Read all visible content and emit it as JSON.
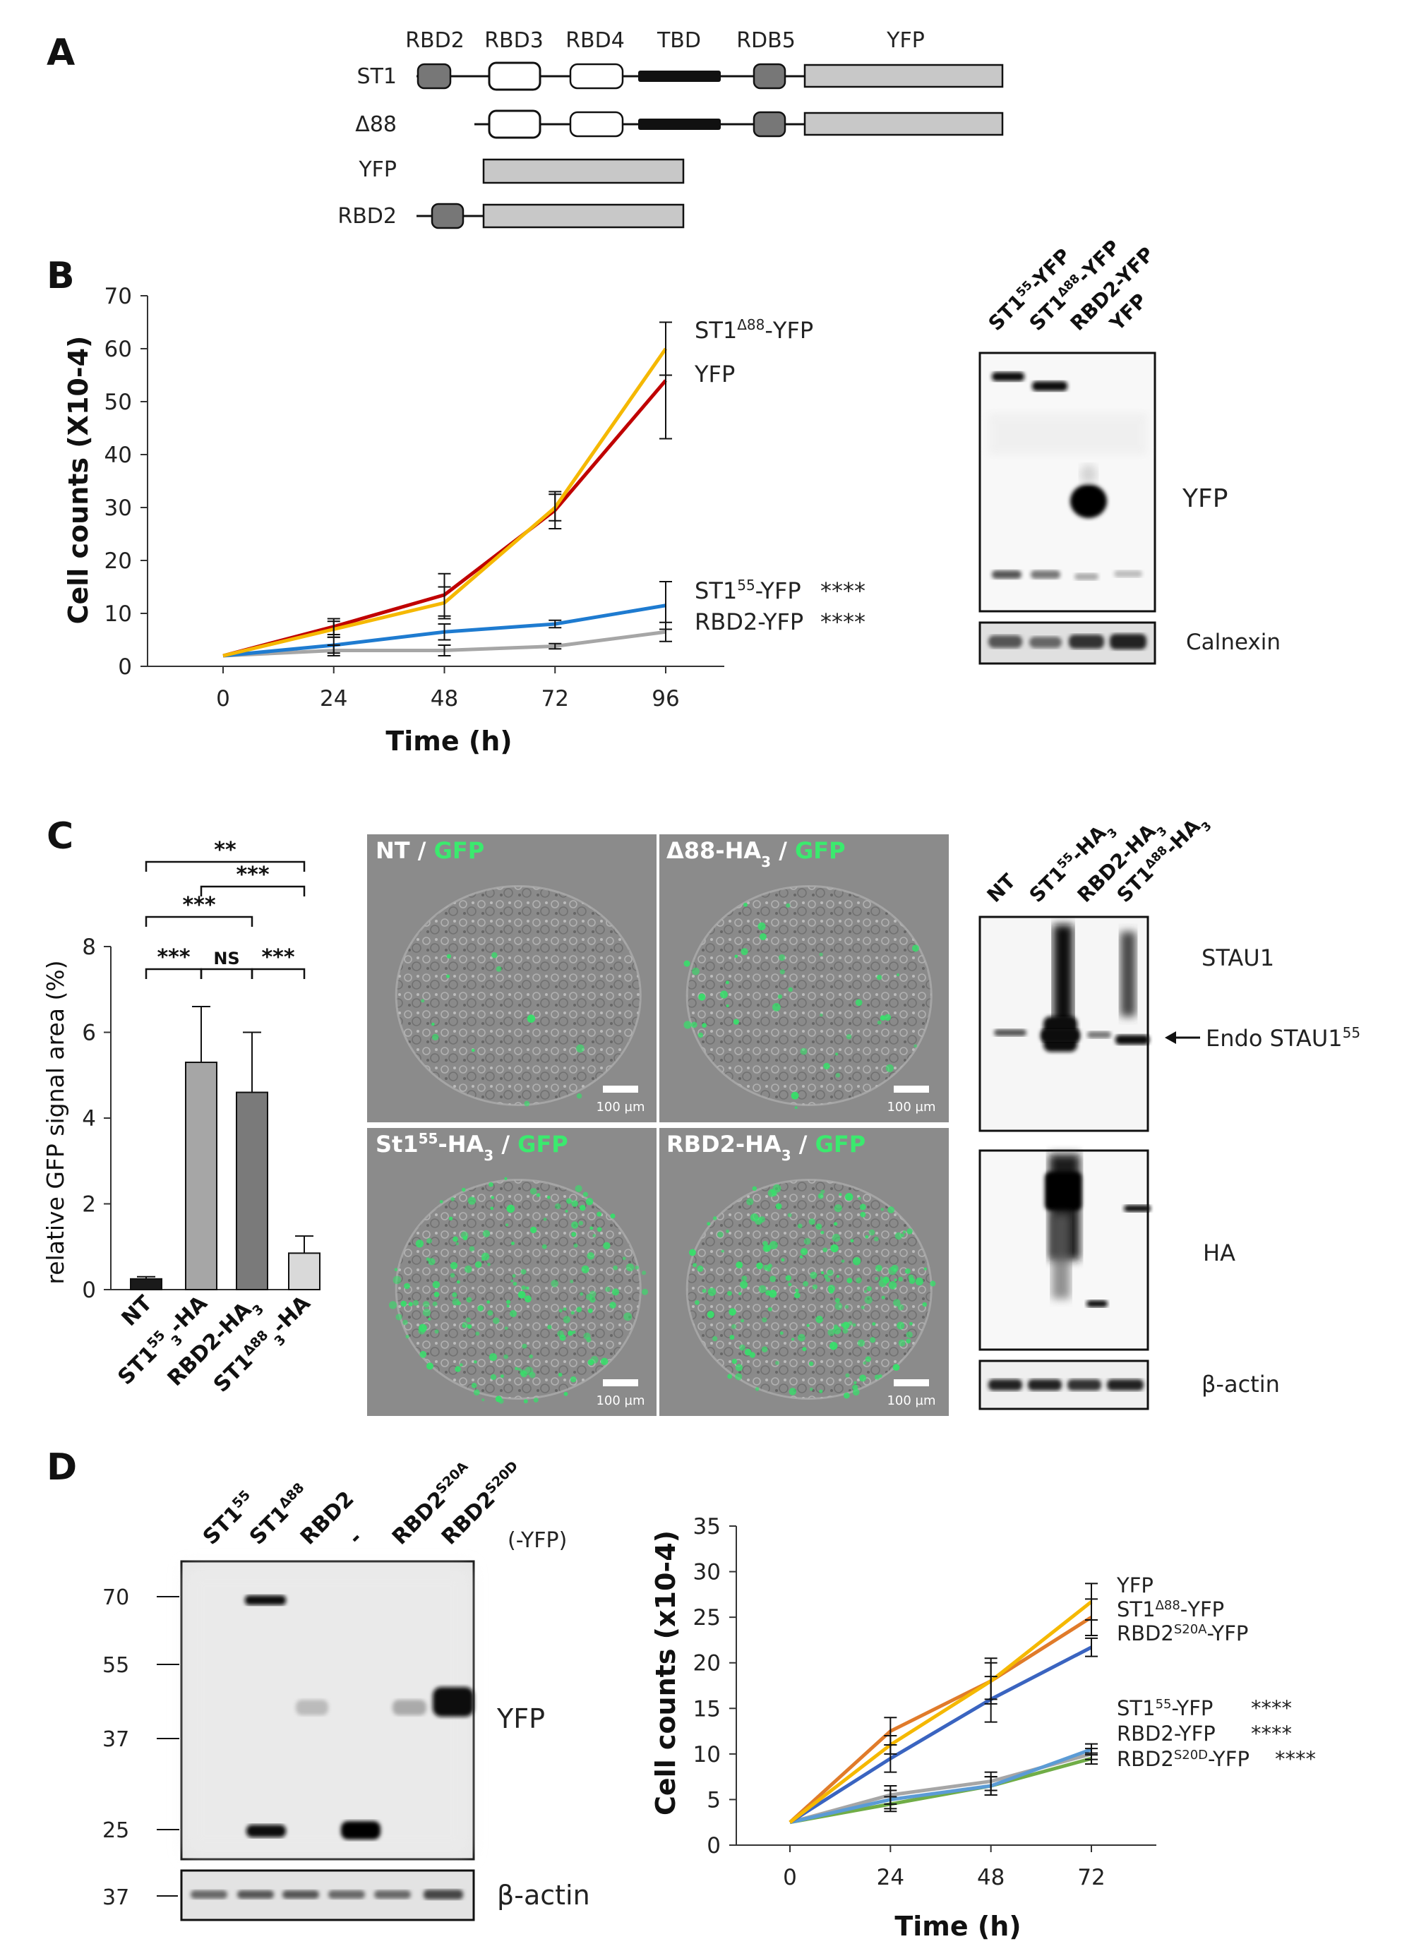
{
  "panels": {
    "a": "A",
    "b": "B",
    "c": "C",
    "d": "D"
  },
  "panel_a": {
    "domain_labels": [
      "RBD2",
      "RBD3",
      "RBD4",
      "TBD",
      "RDB5",
      "YFP"
    ],
    "constructs": [
      "ST1",
      "Δ88",
      "YFP",
      "RBD2"
    ]
  },
  "panel_b_blot": {
    "lanes": [
      {
        "main": "ST1",
        "sup": "55",
        "tail": "-YFP"
      },
      {
        "main": "ST1",
        "sup": "Δ88",
        "tail": "-YFP"
      },
      {
        "main": "RBD2-YFP",
        "sup": "",
        "tail": ""
      },
      {
        "main": "YFP",
        "sup": "",
        "tail": ""
      }
    ],
    "labels": {
      "yfp": "YFP",
      "calnexin": "Calnexin"
    }
  },
  "panel_c_images": [
    {
      "main": "NT",
      "sup": "",
      "sub": "",
      "tail": "",
      "green": "GFP"
    },
    {
      "main": "Δ88-HA",
      "sup": "",
      "sub": "3",
      "tail": "",
      "green": "GFP"
    },
    {
      "main": "St1",
      "sup": "55",
      "sub": "",
      "tail": "-HA",
      "tail_sub": "3",
      "green": "GFP"
    },
    {
      "main": "RBD2-HA",
      "sup": "",
      "sub": "3",
      "tail": "",
      "green": "GFP"
    }
  ],
  "scale_bar": "100 µm",
  "panel_c_blot": {
    "lanes": [
      {
        "main": "NT",
        "sup": "",
        "sub": "",
        "tail": "",
        "tail_sub": ""
      },
      {
        "main": "ST1",
        "sup": "55",
        "sub": "",
        "tail": "-HA",
        "tail_sub": "3"
      },
      {
        "main": "RBD2-HA",
        "sup": "",
        "sub": "3",
        "tail": "",
        "tail_sub": ""
      },
      {
        "main": "ST1",
        "sup": "Δ88",
        "sub": "",
        "tail": "-HA",
        "tail_sub": "3"
      }
    ],
    "labels": {
      "stau1": "STAU1",
      "endo": "Endo STAU1",
      "endo_sup": "55",
      "ha": "HA",
      "actin": "β-actin"
    }
  },
  "panel_d_blot": {
    "lanes": [
      {
        "main": "ST1",
        "sup": "55"
      },
      {
        "main": "ST1",
        "sup": "Δ88"
      },
      {
        "main": "RBD2",
        "sup": ""
      },
      {
        "main": "-",
        "sup": ""
      },
      {
        "main": "RBD2",
        "sup": "S20A"
      },
      {
        "main": "RBD2",
        "sup": "S20D"
      }
    ],
    "suffix": "(-YFP)",
    "markers": [
      "70",
      "55",
      "37",
      "25"
    ],
    "actin_marker": "37",
    "labels": {
      "yfp": "YFP",
      "actin": "β-actin"
    }
  },
  "chart_data": [
    {
      "id": "B",
      "type": "line",
      "x": [
        0,
        24,
        48,
        72,
        96
      ],
      "xlabel": "Time (h)",
      "ylabel": "Cell counts (X10-4)",
      "ylim": [
        0,
        70
      ],
      "yticks": [
        0,
        10,
        20,
        30,
        40,
        50,
        60,
        70
      ],
      "series": [
        {
          "name": "ST1Δ88-YFP",
          "color": "#f5b800",
          "values": [
            2,
            7,
            12,
            30,
            60
          ],
          "err": [
            0,
            1.5,
            3,
            2.5,
            5
          ]
        },
        {
          "name": "YFP",
          "color": "#c00000",
          "values": [
            2,
            7.5,
            13.5,
            29.5,
            54
          ],
          "err": [
            0,
            1.5,
            4,
            3.5,
            11
          ]
        },
        {
          "name": "ST1 55-YFP",
          "color": "#1e7bd0",
          "values": [
            2,
            4,
            6.5,
            8,
            11.5
          ],
          "err": [
            0,
            1.5,
            1.5,
            0.7,
            4.5
          ]
        },
        {
          "name": "RBD2-YFP",
          "color": "#a6a6a6",
          "values": [
            2,
            3,
            3,
            3.8,
            6.5
          ],
          "err": [
            0,
            1,
            1,
            0.5,
            1.8
          ]
        }
      ],
      "legend": [
        {
          "main": "ST1",
          "sup": "Δ88",
          "tail": "-YFP",
          "stars": ""
        },
        {
          "main": "YFP",
          "sup": "",
          "tail": "",
          "stars": ""
        },
        {
          "main": "ST1",
          "sup": "55",
          "tail": "-YFP",
          "stars": "****"
        },
        {
          "main": "RBD2-YFP",
          "sup": "",
          "tail": "",
          "stars": "****"
        }
      ]
    },
    {
      "id": "C",
      "type": "bar",
      "categories": [
        {
          "main": "NT",
          "sup": "",
          "tail": "",
          "sub": ""
        },
        {
          "main": "ST1",
          "sup": "55",
          "tail": "-HA",
          "sub": "3"
        },
        {
          "main": "RBD2-HA",
          "sup": "",
          "tail": "",
          "sub": "3"
        },
        {
          "main": "ST1",
          "sup": "Δ88",
          "tail": "-HA",
          "sub": "3"
        }
      ],
      "values": [
        0.25,
        5.3,
        4.6,
        0.85
      ],
      "errors": [
        0.05,
        1.3,
        1.4,
        0.4
      ],
      "colors": [
        "#1a1a1a",
        "#a6a6a6",
        "#7a7a7a",
        "#d9d9d9"
      ],
      "ylabel": "relative GFP signal area (%)",
      "ylim": [
        0,
        8
      ],
      "yticks": [
        0,
        2,
        4,
        6,
        8
      ],
      "significance": [
        {
          "from": 0,
          "to": 3,
          "label": "**"
        },
        {
          "from": 1,
          "to": 3,
          "label": "***"
        },
        {
          "from": 0,
          "to": 2,
          "label": "***"
        },
        {
          "from": 0,
          "to": 1,
          "label": "***"
        },
        {
          "from": 1,
          "to": 2,
          "label": "NS"
        },
        {
          "from": 2,
          "to": 3,
          "label": "***"
        }
      ]
    },
    {
      "id": "D",
      "type": "line",
      "x": [
        0,
        24,
        48,
        72
      ],
      "xlabel": "Time (h)",
      "ylabel": "Cell counts (x10-4)",
      "ylim": [
        0,
        35
      ],
      "yticks": [
        0,
        5,
        10,
        15,
        20,
        25,
        30,
        35
      ],
      "series": [
        {
          "name": "YFP",
          "color": "#f5b800",
          "values": [
            2.5,
            11,
            18,
            26.7
          ],
          "err": [
            0,
            1,
            2.5,
            2
          ]
        },
        {
          "name": "ST1Δ88-YFP",
          "color": "#e07b2a",
          "values": [
            2.5,
            12.5,
            18,
            25
          ],
          "err": [
            0,
            1.5,
            2,
            2
          ]
        },
        {
          "name": "RBD2S20A-YFP",
          "color": "#3a64c0",
          "values": [
            2.5,
            9.5,
            16,
            21.7
          ],
          "err": [
            0,
            1.5,
            2.5,
            1
          ]
        },
        {
          "name": "ST1 55-YFP",
          "color": "#5b9bd5",
          "values": [
            2.5,
            5,
            6.5,
            10.5
          ],
          "err": [
            0,
            1,
            1,
            0.6
          ]
        },
        {
          "name": "RBD2-YFP",
          "color": "#a6a6a6",
          "values": [
            2.5,
            5.5,
            7,
            10
          ],
          "err": [
            0,
            1,
            1,
            0.6
          ]
        },
        {
          "name": "RBD2S20D-YFP",
          "color": "#70ad47",
          "values": [
            2.5,
            4.5,
            6.5,
            9.5
          ],
          "err": [
            0,
            0.8,
            1,
            0.6
          ]
        }
      ],
      "legend": [
        {
          "main": "YFP",
          "sup": "",
          "tail": "",
          "stars": ""
        },
        {
          "main": "ST1",
          "sup": "Δ88",
          "tail": "-YFP",
          "stars": ""
        },
        {
          "main": "RBD2",
          "sup": "S20A",
          "tail": "-YFP",
          "stars": ""
        },
        {
          "main": "ST1",
          "sup": "55",
          "tail": "-YFP",
          "stars": "****"
        },
        {
          "main": "RBD2-YFP",
          "sup": "",
          "tail": "",
          "stars": "****"
        },
        {
          "main": "RBD2",
          "sup": "S20D",
          "tail": "-YFP",
          "stars": "****"
        }
      ]
    }
  ]
}
